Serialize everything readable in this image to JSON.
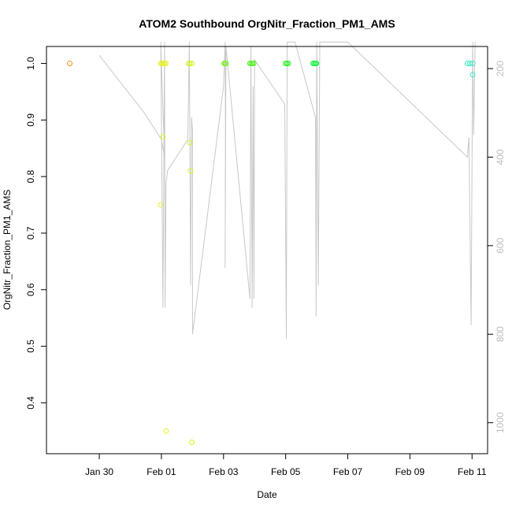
{
  "chart_data": {
    "type": "scatter",
    "title": "ATOM2 Southbound OrgNitr_Fraction_PM1_AMS",
    "xlabel": "Date",
    "ylabel": "OrgNitr_Fraction_PM1_AMS",
    "x_ticks": [
      "Jan 30",
      "Feb 01",
      "Feb 03",
      "Feb 05",
      "Feb 07",
      "Feb 09",
      "Feb 11"
    ],
    "x_tick_values": [
      30,
      32,
      34,
      36,
      38,
      40,
      42
    ],
    "xlim": [
      28.3,
      42.5
    ],
    "ylim": [
      0.31,
      1.03
    ],
    "y_ticks": [
      0.4,
      0.5,
      0.6,
      0.7,
      0.8,
      0.9,
      1.0
    ],
    "y2_ticks": [
      200,
      400,
      600,
      800,
      1000
    ],
    "y2lim": [
      1070,
      150
    ],
    "grid": false,
    "series": [
      {
        "points": [
          {
            "x": 29.05,
            "y": 1.0,
            "color": "#ff8c1a"
          },
          {
            "x": 31.98,
            "y": 1.0,
            "color": "#e6f22a"
          },
          {
            "x": 32.02,
            "y": 1.0,
            "color": "#e6f22a"
          },
          {
            "x": 32.06,
            "y": 1.0,
            "color": "#e6f22a"
          },
          {
            "x": 32.1,
            "y": 1.0,
            "color": "#e6f22a"
          },
          {
            "x": 32.14,
            "y": 1.0,
            "color": "#e6f22a"
          },
          {
            "x": 31.98,
            "y": 0.75,
            "color": "#e6f22a"
          },
          {
            "x": 32.05,
            "y": 0.87,
            "color": "#e6f22a"
          },
          {
            "x": 32.15,
            "y": 0.35,
            "color": "#e6f22a"
          },
          {
            "x": 32.88,
            "y": 1.0,
            "color": "#d4f526"
          },
          {
            "x": 32.92,
            "y": 1.0,
            "color": "#d4f526"
          },
          {
            "x": 32.98,
            "y": 1.0,
            "color": "#d4f526"
          },
          {
            "x": 32.92,
            "y": 0.86,
            "color": "#d4f526"
          },
          {
            "x": 32.94,
            "y": 0.81,
            "color": "#d4f526"
          },
          {
            "x": 32.98,
            "y": 0.33,
            "color": "#d4f526"
          },
          {
            "x": 34.02,
            "y": 1.0,
            "color": "#7ef22a"
          },
          {
            "x": 34.05,
            "y": 1.0,
            "color": "#7ef22a"
          },
          {
            "x": 34.08,
            "y": 1.0,
            "color": "#7ef22a"
          },
          {
            "x": 34.85,
            "y": 1.0,
            "color": "#55f02a"
          },
          {
            "x": 34.89,
            "y": 1.0,
            "color": "#55f02a"
          },
          {
            "x": 34.93,
            "y": 1.0,
            "color": "#55f02a"
          },
          {
            "x": 34.97,
            "y": 1.0,
            "color": "#55f02a"
          },
          {
            "x": 36.0,
            "y": 1.0,
            "color": "#2ef22a"
          },
          {
            "x": 36.04,
            "y": 1.0,
            "color": "#2ef22a"
          },
          {
            "x": 36.08,
            "y": 1.0,
            "color": "#2ef22a"
          },
          {
            "x": 36.88,
            "y": 1.0,
            "color": "#1ef24a"
          },
          {
            "x": 36.92,
            "y": 1.0,
            "color": "#1ef24a"
          },
          {
            "x": 36.96,
            "y": 1.0,
            "color": "#1ef24a"
          },
          {
            "x": 36.99,
            "y": 1.0,
            "color": "#1ef24a"
          },
          {
            "x": 41.85,
            "y": 1.0,
            "color": "#3fe8c8"
          },
          {
            "x": 41.93,
            "y": 1.0,
            "color": "#3fe8c8"
          },
          {
            "x": 42.02,
            "y": 1.0,
            "color": "#3fe8c8"
          },
          {
            "x": 42.02,
            "y": 0.98,
            "color": "#3fe8c8"
          }
        ]
      }
    ],
    "secondary_line": {
      "color": "#c8c8c8",
      "points": [
        [
          30.0,
          170
        ],
        [
          31.45,
          300
        ],
        [
          32.0,
          360
        ],
        [
          32.1,
          400
        ],
        [
          31.98,
          140
        ],
        [
          32.05,
          740
        ],
        [
          32.1,
          140
        ],
        [
          32.12,
          740
        ],
        [
          32.15,
          460
        ],
        [
          32.2,
          430
        ],
        [
          32.85,
          360
        ],
        [
          32.9,
          140
        ],
        [
          32.94,
          690
        ],
        [
          32.97,
          310
        ],
        [
          33.0,
          340
        ],
        [
          33.0,
          800
        ],
        [
          34.0,
          240
        ],
        [
          34.05,
          140
        ],
        [
          34.06,
          330
        ],
        [
          34.05,
          650
        ],
        [
          34.08,
          150
        ],
        [
          34.85,
          720
        ],
        [
          34.88,
          150
        ],
        [
          34.92,
          740
        ],
        [
          34.95,
          240
        ],
        [
          34.98,
          720
        ],
        [
          35.0,
          180
        ],
        [
          35.97,
          280
        ],
        [
          36.02,
          810
        ],
        [
          36.05,
          140
        ],
        [
          36.3,
          140
        ],
        [
          36.96,
          310
        ],
        [
          36.98,
          760
        ],
        [
          37.0,
          140
        ],
        [
          37.05,
          690
        ],
        [
          37.1,
          140
        ],
        [
          38.0,
          140
        ],
        [
          41.85,
          400
        ],
        [
          41.9,
          355
        ],
        [
          41.97,
          780
        ],
        [
          42.02,
          140
        ],
        [
          42.05,
          350
        ],
        [
          42.1,
          140
        ]
      ]
    }
  }
}
